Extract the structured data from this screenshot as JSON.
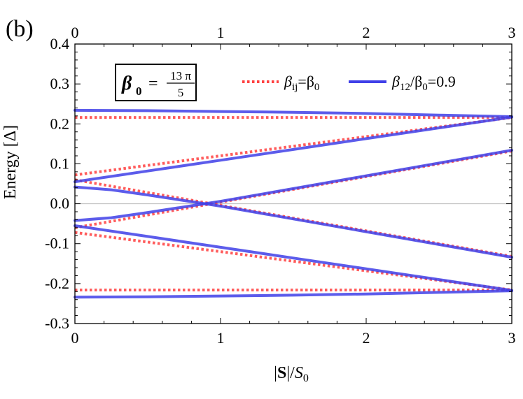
{
  "panel_label": "(b)",
  "inset": {
    "beta": "β",
    "sub": "0",
    "eq": "=",
    "num": "13 π",
    "den": "5"
  },
  "chart_data": {
    "type": "line",
    "xlabel": "|S|/S0",
    "xlabel_parts": {
      "bar1": "|",
      "bold": "S",
      "bar2": "|/",
      "italic": "S",
      "sub": "0"
    },
    "ylabel": "Energy [Δ]",
    "xlim": [
      0,
      3
    ],
    "ylim": [
      -0.3,
      0.4
    ],
    "xticks": [
      0,
      1,
      2,
      3
    ],
    "xtick_labels": [
      "0",
      "1",
      "2",
      "3"
    ],
    "yticks": [
      -0.3,
      -0.2,
      -0.1,
      0.0,
      0.1,
      0.2,
      0.3,
      0.4
    ],
    "ytick_labels": [
      "-0.3",
      "-0.2",
      "-0.1",
      "0.0",
      "0.1",
      "0.2",
      "0.3",
      "0.4"
    ],
    "top_axis_ticks": [
      "0",
      "1",
      "2",
      "3"
    ],
    "grid": false,
    "legend_position": "top-right",
    "colors": {
      "red": "#ff4040",
      "blue": "#3f3fe8",
      "zero": "#b8b8b8"
    },
    "legend": [
      {
        "style": "dotted",
        "color": "#ff4040",
        "base": "β",
        "sub": "ij",
        "rest": "=β",
        "sub2": "0",
        "tail": ""
      },
      {
        "style": "solid",
        "color": "#3f3fe8",
        "base": "β",
        "sub": "12",
        "rest": "/β",
        "sub2": "0",
        "tail": "=0.9"
      }
    ],
    "series": [
      {
        "legend": 0,
        "x": [
          0,
          3
        ],
        "y": [
          0.216,
          0.216
        ]
      },
      {
        "legend": 0,
        "x": [
          0,
          3
        ],
        "y": [
          -0.216,
          -0.216
        ]
      },
      {
        "legend": 0,
        "x": [
          0,
          3
        ],
        "y": [
          0.072,
          0.216
        ]
      },
      {
        "legend": 0,
        "x": [
          0,
          3
        ],
        "y": [
          0.06,
          -0.132
        ]
      },
      {
        "legend": 0,
        "x": [
          0,
          3
        ],
        "y": [
          -0.06,
          0.132
        ]
      },
      {
        "legend": 0,
        "x": [
          0,
          3
        ],
        "y": [
          -0.072,
          -0.216
        ]
      },
      {
        "legend": 1,
        "x": [
          0,
          0.5,
          1,
          1.5,
          2,
          2.5,
          3
        ],
        "y": [
          0.234,
          0.233,
          0.231,
          0.229,
          0.226,
          0.222,
          0.218
        ]
      },
      {
        "legend": 1,
        "x": [
          0,
          0.5,
          1,
          1.5,
          2,
          2.5,
          3
        ],
        "y": [
          -0.234,
          -0.233,
          -0.231,
          -0.229,
          -0.226,
          -0.222,
          -0.218
        ]
      },
      {
        "legend": 1,
        "x": [
          0,
          0.5,
          1,
          1.5,
          2,
          2.5,
          3
        ],
        "y": [
          0.055,
          0.082,
          0.109,
          0.136,
          0.163,
          0.19,
          0.217
        ]
      },
      {
        "legend": 1,
        "x": [
          0,
          0.25,
          0.5,
          0.75,
          1,
          1.5,
          2,
          2.5,
          3
        ],
        "y": [
          0.042,
          0.035,
          0.022,
          0.008,
          -0.006,
          -0.038,
          -0.07,
          -0.102,
          -0.134
        ]
      },
      {
        "legend": 1,
        "x": [
          0,
          0.25,
          0.5,
          0.75,
          1,
          1.5,
          2,
          2.5,
          3
        ],
        "y": [
          -0.042,
          -0.035,
          -0.022,
          -0.008,
          0.006,
          0.038,
          0.07,
          0.102,
          0.134
        ]
      },
      {
        "legend": 1,
        "x": [
          0,
          0.5,
          1,
          1.5,
          2,
          2.5,
          3
        ],
        "y": [
          -0.055,
          -0.082,
          -0.109,
          -0.136,
          -0.163,
          -0.19,
          -0.217
        ]
      }
    ]
  }
}
